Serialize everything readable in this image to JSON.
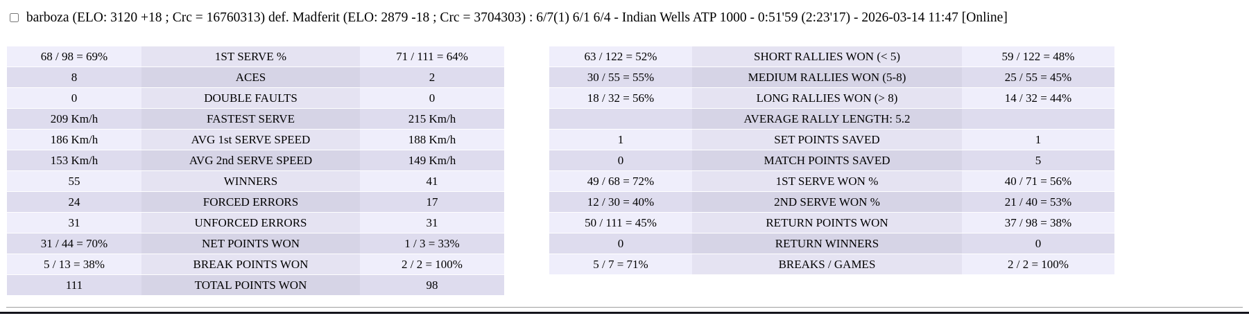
{
  "header": {
    "match_summary": "barboza (ELO: 3120 +18 ; Crc = 16760313) def. Madferit (ELO: 2879 -18 ; Crc = 3704303) : 6/7(1) 6/1 6/4 - Indian Wells ATP 1000 - 0:51'59 (2:23'17) - 2026-03-14 11:47 [Online]"
  },
  "colors": {
    "row_light_side": "#efeefb",
    "row_light_mid": "#e5e3f2",
    "row_dark_side": "#dedcee",
    "row_dark_mid": "#d6d4e6",
    "bottom_bar": "#14141c"
  },
  "stats_left": {
    "rows": [
      {
        "p1": "68 / 98 = 69%",
        "label": "1ST SERVE %",
        "p2": "71 / 111 = 64%"
      },
      {
        "p1": "8",
        "label": "ACES",
        "p2": "2"
      },
      {
        "p1": "0",
        "label": "DOUBLE FAULTS",
        "p2": "0"
      },
      {
        "p1": "209 Km/h",
        "label": "FASTEST SERVE",
        "p2": "215 Km/h"
      },
      {
        "p1": "186 Km/h",
        "label": "AVG 1st SERVE SPEED",
        "p2": "188 Km/h"
      },
      {
        "p1": "153 Km/h",
        "label": "AVG 2nd SERVE SPEED",
        "p2": "149 Km/h"
      },
      {
        "p1": "55",
        "label": "WINNERS",
        "p2": "41"
      },
      {
        "p1": "24",
        "label": "FORCED ERRORS",
        "p2": "17"
      },
      {
        "p1": "31",
        "label": "UNFORCED ERRORS",
        "p2": "31"
      },
      {
        "p1": "31 / 44 = 70%",
        "label": "NET POINTS WON",
        "p2": "1 / 3 = 33%"
      },
      {
        "p1": "5 / 13 = 38%",
        "label": "BREAK POINTS WON",
        "p2": "2 / 2 = 100%"
      },
      {
        "p1": "111",
        "label": "TOTAL POINTS WON",
        "p2": "98"
      }
    ]
  },
  "stats_right": {
    "rows": [
      {
        "p1": "63 / 122 = 52%",
        "label": "SHORT RALLIES WON (< 5)",
        "p2": "59 / 122 = 48%"
      },
      {
        "p1": "30 / 55 = 55%",
        "label": "MEDIUM RALLIES WON (5-8)",
        "p2": "25 / 55 = 45%"
      },
      {
        "p1": "18 / 32 = 56%",
        "label": "LONG RALLIES WON (> 8)",
        "p2": "14 / 32 = 44%"
      },
      {
        "p1": "",
        "label": "AVERAGE RALLY LENGTH: 5.2",
        "p2": ""
      },
      {
        "p1": "1",
        "label": "SET POINTS SAVED",
        "p2": "1"
      },
      {
        "p1": "0",
        "label": "MATCH POINTS SAVED",
        "p2": "5"
      },
      {
        "p1": "49 / 68 = 72%",
        "label": "1ST SERVE WON %",
        "p2": "40 / 71 = 56%"
      },
      {
        "p1": "12 / 30 = 40%",
        "label": "2ND SERVE WON %",
        "p2": "21 / 40 = 53%"
      },
      {
        "p1": "50 / 111 = 45%",
        "label": "RETURN POINTS WON",
        "p2": "37 / 98 = 38%"
      },
      {
        "p1": "0",
        "label": "RETURN WINNERS",
        "p2": "0"
      },
      {
        "p1": "5 / 7 = 71%",
        "label": "BREAKS / GAMES",
        "p2": "2 / 2 = 100%"
      }
    ]
  }
}
